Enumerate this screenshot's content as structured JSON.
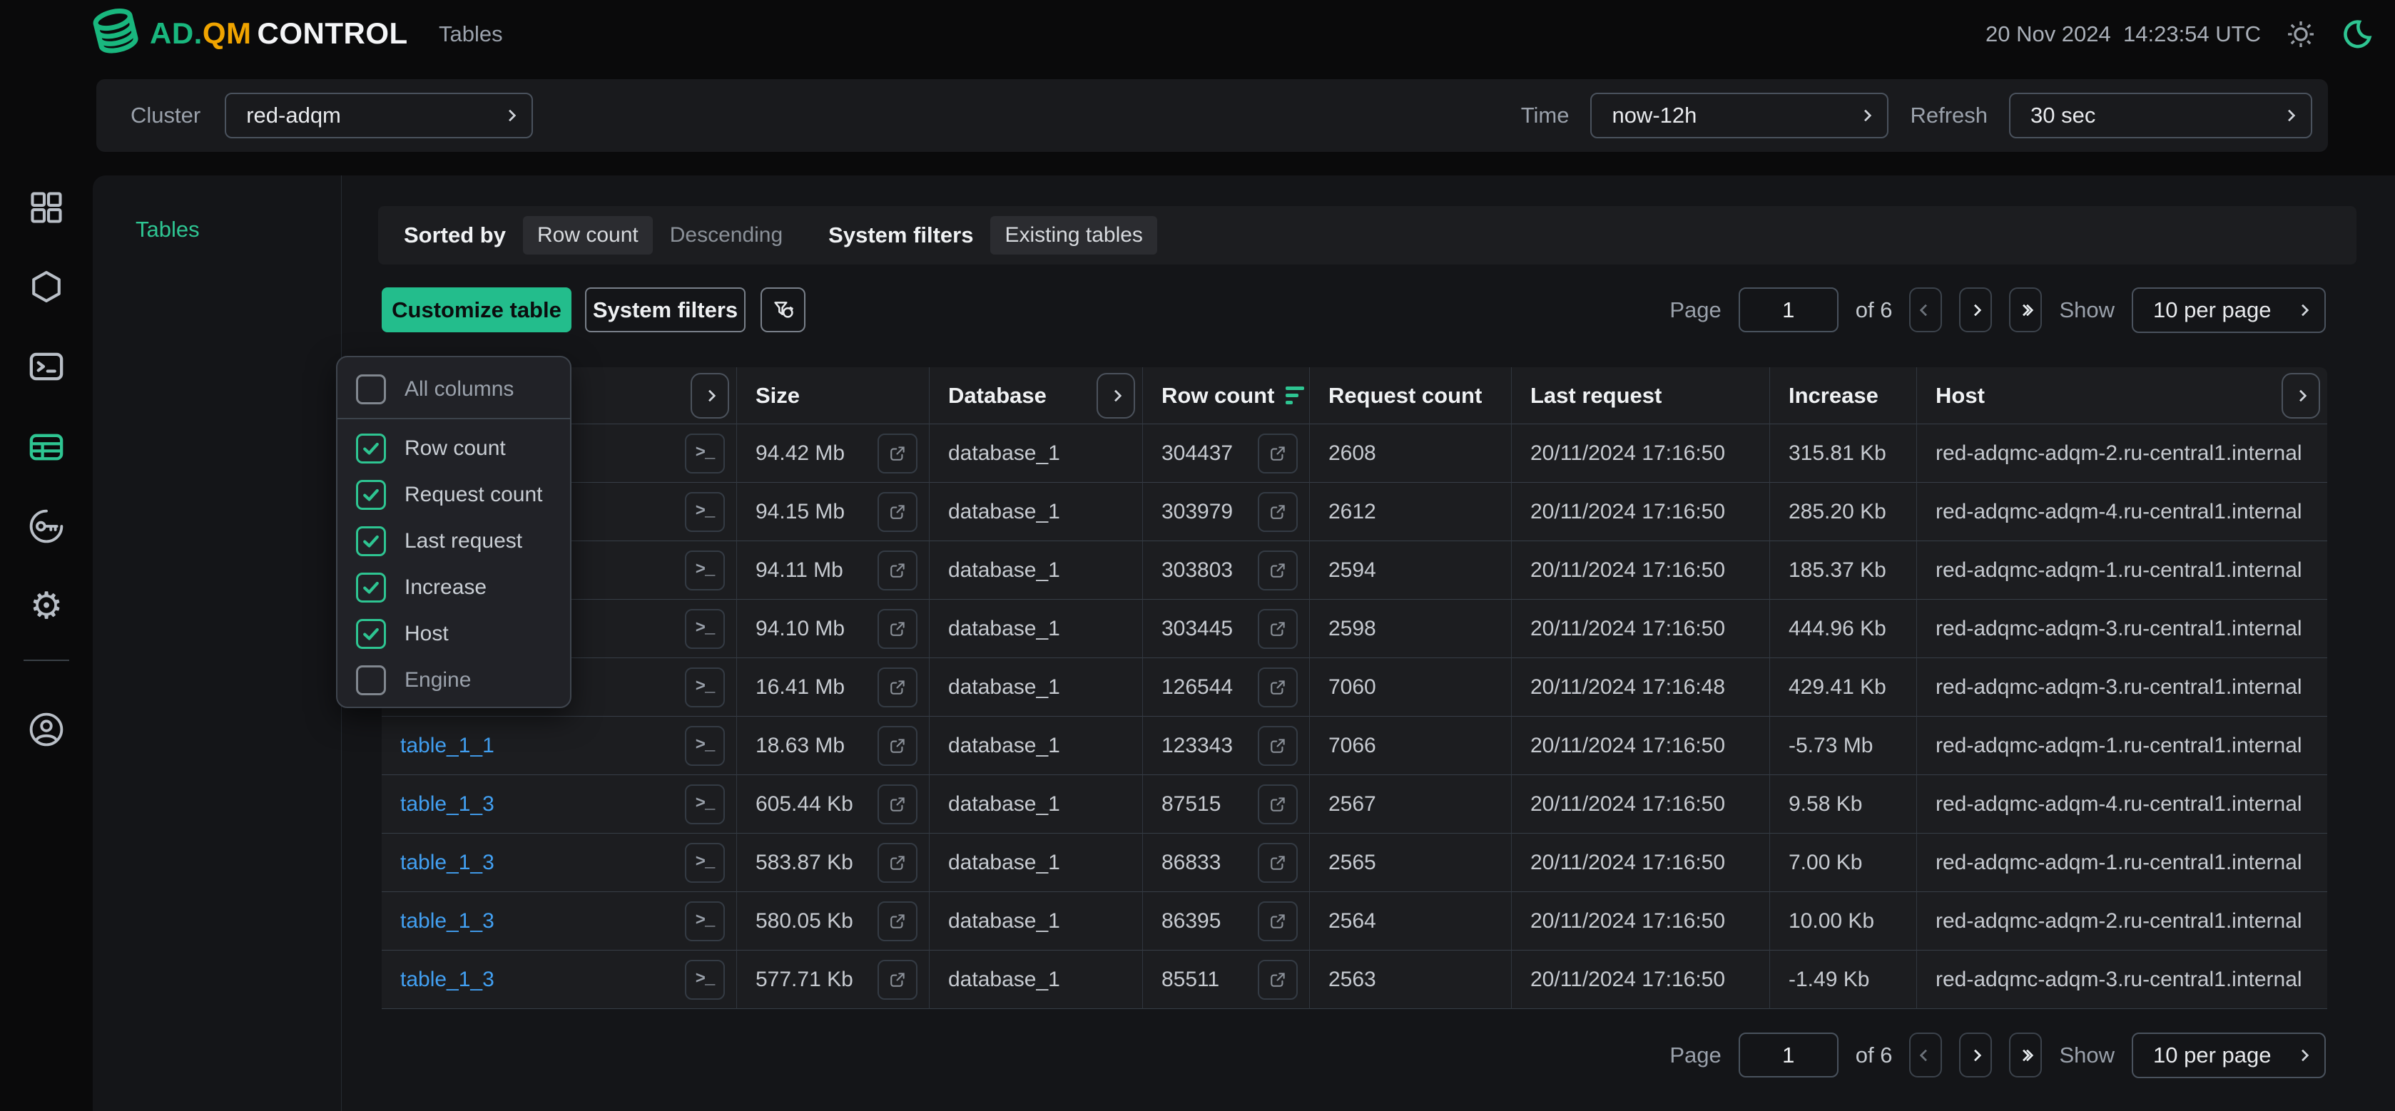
{
  "topbar": {
    "brand_ad": "AD.",
    "brand_qm": "QM",
    "brand_control": "CONTROL",
    "nav_tables": "Tables",
    "datetime": "20 Nov 2024  14:23:54 UTC"
  },
  "filter_bar": {
    "cluster_label": "Cluster",
    "cluster_value": "red-adqm",
    "time_label": "Time",
    "time_value": "now-12h",
    "refresh_label": "Refresh",
    "refresh_value": "30 sec"
  },
  "nav_panel": {
    "title": "Tables"
  },
  "sort_bar": {
    "sorted_by_label": "Sorted by",
    "sort_field": "Row count",
    "sort_direction": "Descending",
    "system_filters_label": "System filters",
    "system_filters_value": "Existing tables"
  },
  "toolbar": {
    "customize_label": "Customize table",
    "system_filters_label": "System filters"
  },
  "columns_menu": {
    "all_label": "All columns",
    "all_checked": false,
    "items": [
      {
        "label": "Row count",
        "checked": true
      },
      {
        "label": "Request count",
        "checked": true
      },
      {
        "label": "Last request",
        "checked": true
      },
      {
        "label": "Increase",
        "checked": true
      },
      {
        "label": "Host",
        "checked": true
      },
      {
        "label": "Engine",
        "checked": false
      }
    ]
  },
  "pagination": {
    "page_label": "Page",
    "page_value": "1",
    "total_label": "of 6",
    "show_label": "Show",
    "per_page_value": "10 per page"
  },
  "table": {
    "headers": {
      "name": "",
      "size": "Size",
      "database": "Database",
      "row_count": "Row count",
      "request_count": "Request count",
      "last_request": "Last request",
      "increase": "Increase",
      "host": "Host"
    },
    "rows": [
      {
        "name": "",
        "size": "94.42 Mb",
        "database": "database_1",
        "row_count": "304437",
        "request_count": "2608",
        "last_request": "20/11/2024 17:16:50",
        "increase": "315.81 Kb",
        "host": "red-adqmc-adqm-2.ru-central1.internal"
      },
      {
        "name": "",
        "size": "94.15 Mb",
        "database": "database_1",
        "row_count": "303979",
        "request_count": "2612",
        "last_request": "20/11/2024 17:16:50",
        "increase": "285.20 Kb",
        "host": "red-adqmc-adqm-4.ru-central1.internal"
      },
      {
        "name": "",
        "size": "94.11 Mb",
        "database": "database_1",
        "row_count": "303803",
        "request_count": "2594",
        "last_request": "20/11/2024 17:16:50",
        "increase": "185.37 Kb",
        "host": "red-adqmc-adqm-1.ru-central1.internal"
      },
      {
        "name": "",
        "size": "94.10 Mb",
        "database": "database_1",
        "row_count": "303445",
        "request_count": "2598",
        "last_request": "20/11/2024 17:16:50",
        "increase": "444.96 Kb",
        "host": "red-adqmc-adqm-3.ru-central1.internal"
      },
      {
        "name": "",
        "size": "16.41 Mb",
        "database": "database_1",
        "row_count": "126544",
        "request_count": "7060",
        "last_request": "20/11/2024 17:16:48",
        "increase": "429.41 Kb",
        "host": "red-adqmc-adqm-3.ru-central1.internal"
      },
      {
        "name": "table_1_1",
        "size": "18.63 Mb",
        "database": "database_1",
        "row_count": "123343",
        "request_count": "7066",
        "last_request": "20/11/2024 17:16:50",
        "increase": "-5.73 Mb",
        "host": "red-adqmc-adqm-1.ru-central1.internal"
      },
      {
        "name": "table_1_3",
        "size": "605.44 Kb",
        "database": "database_1",
        "row_count": "87515",
        "request_count": "2567",
        "last_request": "20/11/2024 17:16:50",
        "increase": "9.58 Kb",
        "host": "red-adqmc-adqm-4.ru-central1.internal"
      },
      {
        "name": "table_1_3",
        "size": "583.87 Kb",
        "database": "database_1",
        "row_count": "86833",
        "request_count": "2565",
        "last_request": "20/11/2024 17:16:50",
        "increase": "7.00 Kb",
        "host": "red-adqmc-adqm-1.ru-central1.internal"
      },
      {
        "name": "table_1_3",
        "size": "580.05 Kb",
        "database": "database_1",
        "row_count": "86395",
        "request_count": "2564",
        "last_request": "20/11/2024 17:16:50",
        "increase": "10.00 Kb",
        "host": "red-adqmc-adqm-2.ru-central1.internal"
      },
      {
        "name": "table_1_3",
        "size": "577.71 Kb",
        "database": "database_1",
        "row_count": "85511",
        "request_count": "2563",
        "last_request": "20/11/2024 17:16:50",
        "increase": "-1.49 Kb",
        "host": "red-adqmc-adqm-3.ru-central1.internal"
      }
    ]
  },
  "colors": {
    "accent_green": "#23bd8c",
    "icon_green": "#2ec592",
    "brand_yellow": "#f0a400",
    "link_blue": "#42a0f2"
  }
}
